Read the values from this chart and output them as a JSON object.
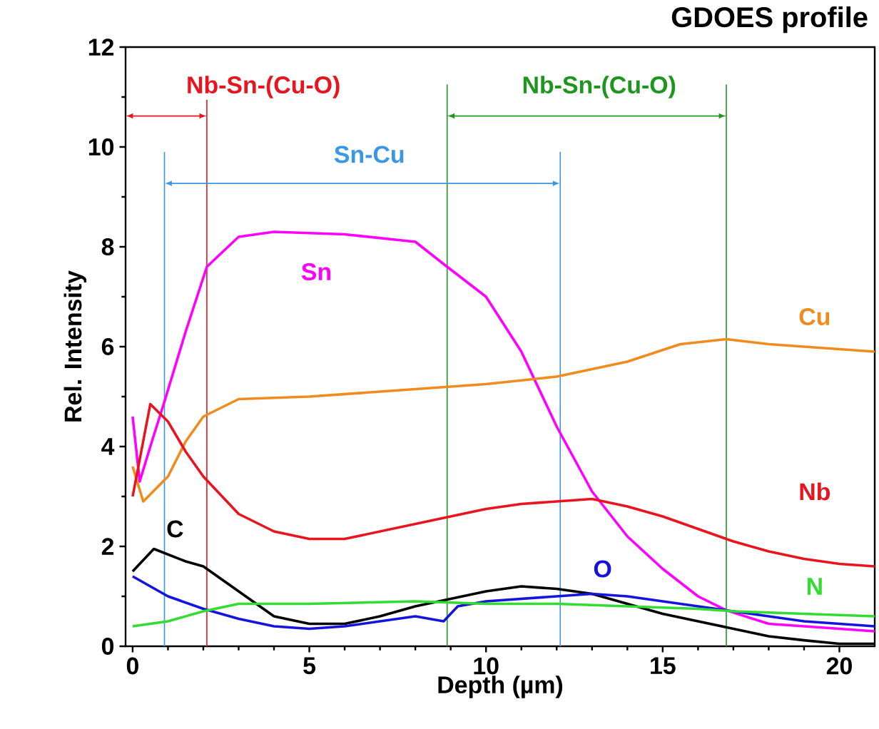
{
  "chart_data": {
    "type": "line",
    "title": "GDOES profile",
    "xlabel": "Depth (µm)",
    "ylabel": "Rel. Intensity",
    "xlim": [
      -0.2,
      21
    ],
    "ylim": [
      0,
      12
    ],
    "xticks": [
      0,
      5,
      10,
      15,
      20
    ],
    "yticks": [
      0,
      2,
      4,
      6,
      8,
      10,
      12
    ],
    "legend": false,
    "grid": false,
    "marker": "none",
    "line_style": "solid",
    "series": [
      {
        "name": "Sn",
        "color": "#ff00ff",
        "x": [
          0,
          0.2,
          0.5,
          0.9,
          1.5,
          2.1,
          3,
          4,
          6,
          8,
          8.9,
          10,
          11,
          12,
          13,
          14,
          15,
          16,
          16.8,
          18,
          20,
          21
        ],
        "values": [
          4.6,
          3.3,
          4.0,
          4.9,
          6.3,
          7.6,
          8.2,
          8.3,
          8.25,
          8.1,
          7.6,
          7.0,
          5.9,
          4.4,
          3.1,
          2.2,
          1.55,
          1.0,
          0.72,
          0.45,
          0.35,
          0.3
        ]
      },
      {
        "name": "Cu",
        "color": "#f08c1e",
        "x": [
          0,
          0.3,
          1,
          1.5,
          2,
          3,
          5,
          8,
          10,
          12,
          14,
          15.5,
          16.8,
          18,
          20,
          21
        ],
        "values": [
          3.6,
          2.9,
          3.4,
          4.1,
          4.6,
          4.95,
          5.0,
          5.15,
          5.25,
          5.4,
          5.7,
          6.05,
          6.15,
          6.05,
          5.95,
          5.9
        ]
      },
      {
        "name": "Nb",
        "color": "#e8141e",
        "x": [
          0,
          0.5,
          1,
          1.5,
          2,
          3,
          4,
          5,
          6,
          7,
          8,
          9,
          10,
          11,
          12,
          13,
          14,
          15,
          16,
          17,
          18,
          19,
          20,
          21
        ],
        "values": [
          3.0,
          4.85,
          4.5,
          3.9,
          3.4,
          2.65,
          2.3,
          2.15,
          2.15,
          2.3,
          2.45,
          2.6,
          2.75,
          2.85,
          2.9,
          2.95,
          2.8,
          2.6,
          2.35,
          2.1,
          1.9,
          1.75,
          1.65,
          1.6
        ]
      },
      {
        "name": "C",
        "color": "#000000",
        "x": [
          0,
          0.6,
          1.5,
          2,
          3,
          4,
          5,
          6,
          7,
          8,
          9,
          10,
          11,
          12,
          13,
          14,
          15,
          16,
          17,
          18,
          19,
          20,
          21
        ],
        "values": [
          1.5,
          1.95,
          1.7,
          1.6,
          1.1,
          0.6,
          0.45,
          0.45,
          0.6,
          0.8,
          0.95,
          1.1,
          1.2,
          1.15,
          1.05,
          0.85,
          0.65,
          0.5,
          0.35,
          0.2,
          0.12,
          0.05,
          0.05
        ]
      },
      {
        "name": "O",
        "color": "#1414dc",
        "x": [
          0,
          0.5,
          1,
          2,
          3,
          4,
          5,
          6,
          7,
          8,
          8.8,
          9.2,
          10,
          11,
          12,
          13,
          14,
          15,
          16,
          17,
          18,
          19,
          20,
          21
        ],
        "values": [
          1.4,
          1.2,
          1.0,
          0.75,
          0.55,
          0.4,
          0.35,
          0.4,
          0.5,
          0.6,
          0.5,
          0.8,
          0.9,
          0.95,
          1.0,
          1.05,
          1.0,
          0.9,
          0.8,
          0.7,
          0.6,
          0.5,
          0.45,
          0.4
        ]
      },
      {
        "name": "N",
        "color": "#32dc32",
        "x": [
          0,
          1,
          2,
          3,
          5,
          8,
          10,
          12,
          14,
          16,
          17,
          19,
          21
        ],
        "values": [
          0.4,
          0.5,
          0.7,
          0.85,
          0.85,
          0.9,
          0.85,
          0.85,
          0.8,
          0.75,
          0.7,
          0.65,
          0.6
        ]
      }
    ],
    "ref_lines": [
      {
        "axis": "x",
        "value": 2.1,
        "color": "#e8141e"
      },
      {
        "axis": "x",
        "value": 0.9,
        "color": "#3c96e6"
      },
      {
        "axis": "x",
        "value": 12.1,
        "color": "#3c96e6"
      },
      {
        "axis": "x",
        "value": 8.9,
        "color": "#1e961e"
      },
      {
        "axis": "x",
        "value": 16.8,
        "color": "#1e961e"
      }
    ],
    "annotations": [
      "Nb-Sn-(Cu-O)",
      "Sn-Cu",
      "Nb-Sn-(Cu-O)"
    ]
  }
}
